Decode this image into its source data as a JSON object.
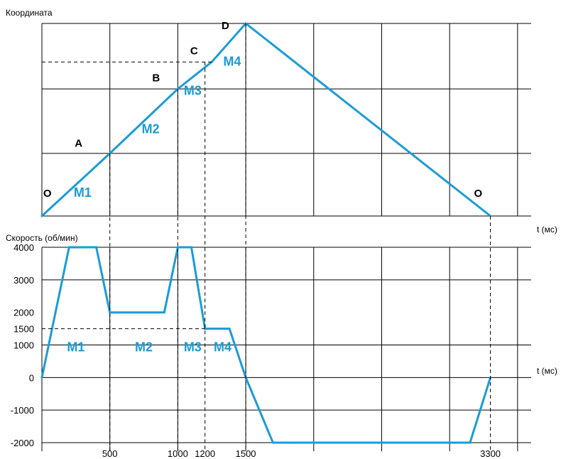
{
  "colors": {
    "accent": "#1a9bd7",
    "grid": "#000000",
    "text": "#000000"
  },
  "chart_data": [
    {
      "type": "line",
      "ylabel": "Координата",
      "xlabel": "t (мс)",
      "xlim": [
        0,
        3600
      ],
      "ylim": [
        0,
        1
      ],
      "x_grid": [
        500,
        1000,
        1500,
        2000,
        2500,
        3000,
        3500
      ],
      "y_grid": [
        0.325,
        0.66
      ],
      "series": [
        {
          "x": [
            0,
            500,
            1000,
            1250,
            1500,
            3300
          ],
          "y": [
            0,
            0.325,
            0.66,
            0.8,
            1,
            0
          ]
        }
      ],
      "point_labels": [
        {
          "text": "O",
          "x": 40,
          "y": 0.1
        },
        {
          "text": "A",
          "x": 270,
          "y": 0.36
        },
        {
          "text": "B",
          "x": 840,
          "y": 0.7
        },
        {
          "text": "C",
          "x": 1120,
          "y": 0.84
        },
        {
          "text": "D",
          "x": 1350,
          "y": 0.97
        },
        {
          "text": "O",
          "x": 3210,
          "y": 0.1
        }
      ],
      "segment_labels": [
        {
          "text": "M1",
          "x": 300,
          "y": 0.1
        },
        {
          "text": "M2",
          "x": 800,
          "y": 0.43
        },
        {
          "text": "M3",
          "x": 1110,
          "y": 0.63
        },
        {
          "text": "M4",
          "x": 1400,
          "y": 0.78
        }
      ]
    },
    {
      "type": "line",
      "ylabel": "Скорость (об/мин)",
      "xlabel": "t (мс)",
      "xlim": [
        0,
        3600
      ],
      "ylim": [
        -2000,
        4000
      ],
      "y_ticks": [
        4000,
        3000,
        2000,
        1500,
        1000,
        0,
        -1000,
        -2000
      ],
      "y_tick_labels": [
        "4000",
        "3000",
        "2000",
        "1500",
        "1000",
        "0",
        "-1000",
        "-2000"
      ],
      "y_grid": [
        4000,
        3000,
        1000,
        0,
        -1000,
        -2000
      ],
      "x_grid": [
        500,
        1000,
        1500,
        2000,
        2500,
        3000,
        3500
      ],
      "x_ticks": [
        500,
        1000,
        1200,
        1500,
        3300
      ],
      "x_tick_labels": [
        "500",
        "1000",
        "1200",
        "1500",
        "3300"
      ],
      "series": [
        {
          "x": [
            0,
            200,
            400,
            500,
            900,
            1000,
            1100,
            1200,
            1380,
            1500,
            1700,
            3150,
            3300
          ],
          "y": [
            0,
            4000,
            4000,
            2000,
            2000,
            4000,
            4000,
            1500,
            1500,
            0,
            -2000,
            -2000,
            0
          ]
        }
      ],
      "segment_labels": [
        {
          "text": "M1",
          "x": 250,
          "y": 800
        },
        {
          "text": "M2",
          "x": 750,
          "y": 800
        },
        {
          "text": "M3",
          "x": 1110,
          "y": 800
        },
        {
          "text": "M4",
          "x": 1330,
          "y": 800
        }
      ]
    }
  ]
}
